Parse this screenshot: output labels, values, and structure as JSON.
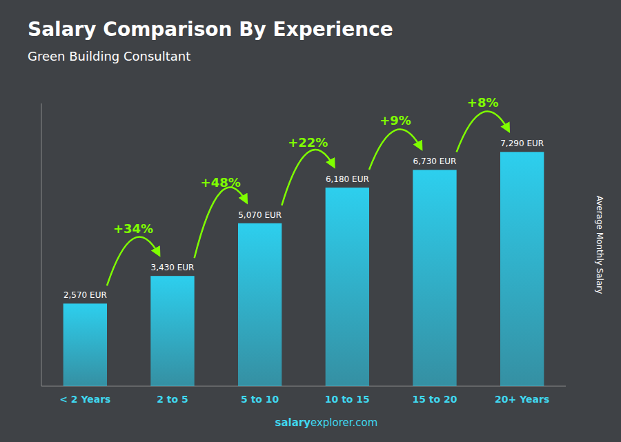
{
  "chart_data": {
    "type": "bar",
    "title": "Salary Comparison By Experience",
    "subtitle": "Green Building Consultant",
    "categories": [
      "< 2 Years",
      "2 to 5",
      "5 to 10",
      "10 to 15",
      "15 to 20",
      "20+ Years"
    ],
    "values": [
      2570,
      3430,
      5070,
      6180,
      6730,
      7290
    ],
    "value_labels": [
      "2,570 EUR",
      "3,430 EUR",
      "5,070 EUR",
      "6,180 EUR",
      "6,730 EUR",
      "7,290 EUR"
    ],
    "data_labels": true,
    "annotations": [
      "+34%",
      "+48%",
      "+22%",
      "+9%",
      "+8%"
    ],
    "y_label": "Average Monthly Salary",
    "watermark": [
      "salary",
      "explorer.com"
    ],
    "color": "#2dcfee",
    "ylim": [
      0,
      8800
    ],
    "tick_labels": "x",
    "grid": false
  }
}
